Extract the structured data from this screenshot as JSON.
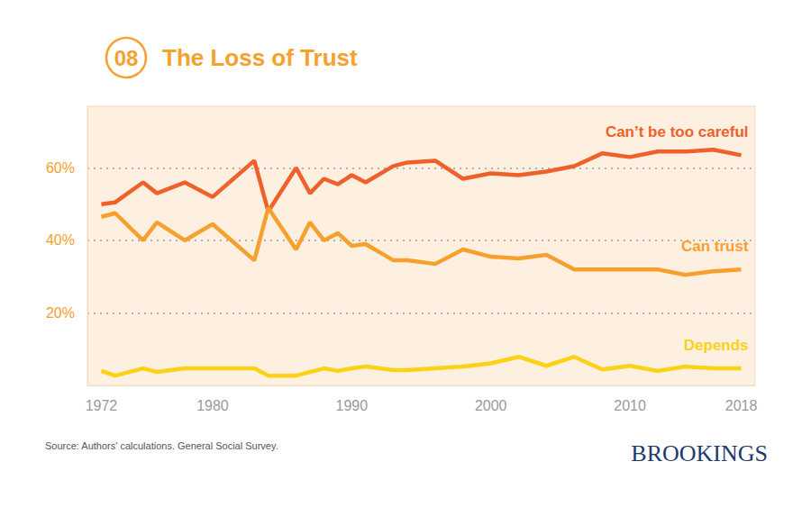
{
  "chart_data": {
    "type": "line",
    "label": "08",
    "title": "The Loss of Trust",
    "source": "Source: Authors' calculations. General Social Survey.",
    "logo": "BROOKINGS",
    "x": [
      1972,
      1973,
      1975,
      1976,
      1978,
      1980,
      1983,
      1984,
      1986,
      1987,
      1988,
      1989,
      1990,
      1991,
      1993,
      1994,
      1996,
      1998,
      2000,
      2002,
      2004,
      2006,
      2008,
      2010,
      2012,
      2014,
      2016,
      2018
    ],
    "series": [
      {
        "name": "Can’t be too careful",
        "color": "#f0602b",
        "values": [
          50,
          50.5,
          56,
          53,
          56,
          52,
          62,
          48,
          60,
          53,
          57,
          55.5,
          58,
          56,
          60.5,
          61.5,
          62,
          57,
          58.5,
          58,
          59,
          60.5,
          64,
          63,
          64.5,
          64.5,
          65,
          63.5
        ]
      },
      {
        "name": "Can trust",
        "color": "#f6a02d",
        "values": [
          46.5,
          47.5,
          40,
          45,
          40,
          44.5,
          34.5,
          49,
          37.5,
          45,
          40,
          42,
          38.5,
          39,
          34.5,
          34.5,
          33.5,
          37.5,
          35.5,
          35,
          36,
          32,
          32,
          32,
          32,
          30.5,
          31.5,
          32
        ]
      },
      {
        "name": "Depends",
        "color": "#fcd116",
        "values": [
          4,
          2.7,
          4.7,
          3.7,
          4.7,
          4.7,
          4.7,
          2.7,
          2.7,
          3.7,
          4.7,
          4,
          4.7,
          5.2,
          4.2,
          4.2,
          4.7,
          5.2,
          6.1,
          7.9,
          5.4,
          7.9,
          4.4,
          5.4,
          4,
          5.2,
          4.7,
          4.7
        ]
      }
    ],
    "xlim": [
      1971,
      2019
    ],
    "xticks": [
      1972,
      1980,
      1990,
      2000,
      2010,
      2018
    ],
    "ylim": [
      0,
      77
    ],
    "yticks": [
      {
        "value": 20,
        "label": "20%"
      },
      {
        "value": 40,
        "label": "40%"
      },
      {
        "value": 60,
        "label": "60%"
      }
    ],
    "grid": true
  }
}
